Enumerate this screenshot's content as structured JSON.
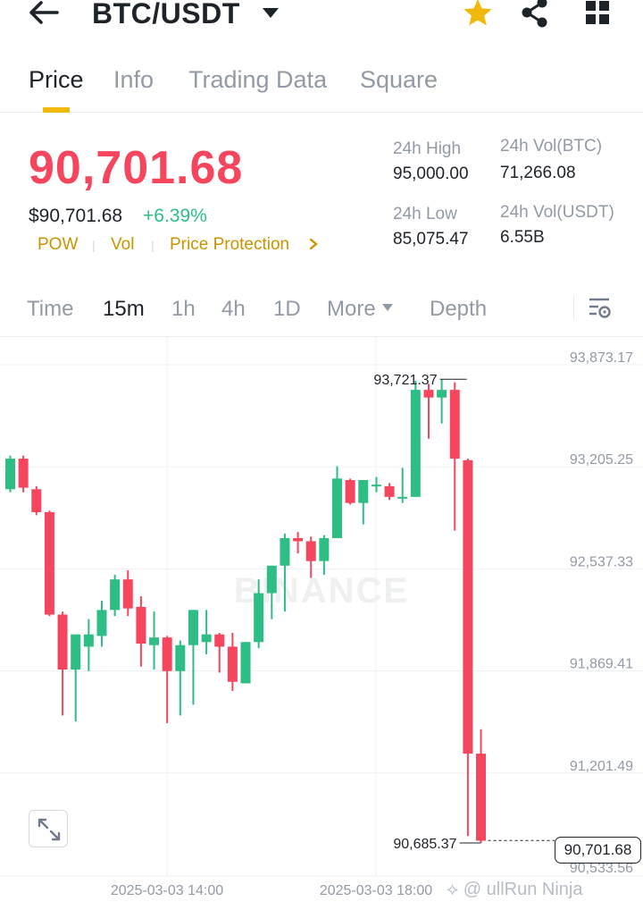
{
  "header": {
    "pair": "BTC/USDT",
    "icons": [
      "back-arrow-icon",
      "caret-down-icon",
      "star-icon",
      "share-icon",
      "grid-icon"
    ],
    "star_color": "#f0b90b"
  },
  "tabs": [
    {
      "label": "Price",
      "active": true
    },
    {
      "label": "Info",
      "active": false
    },
    {
      "label": "Trading Data",
      "active": false
    },
    {
      "label": "Square",
      "active": false
    }
  ],
  "price": {
    "last": "90,701.68",
    "usd": "$90,701.68",
    "change": "+6.39%",
    "tags": [
      "POW",
      "Vol",
      "Price Protection"
    ]
  },
  "stats": {
    "high_label": "24h High",
    "high": "95,000.00",
    "low_label": "24h Low",
    "low": "85,075.47",
    "vol_btc_label": "24h Vol(BTC)",
    "vol_btc": "71,266.08",
    "vol_usdt_label": "24h Vol(USDT)",
    "vol_usdt": "6.55B"
  },
  "intervals": {
    "items": [
      {
        "label": "Time",
        "active": false
      },
      {
        "label": "15m",
        "active": true
      },
      {
        "label": "1h",
        "active": false
      },
      {
        "label": "4h",
        "active": false
      },
      {
        "label": "1D",
        "active": false
      },
      {
        "label": "More",
        "active": false
      },
      {
        "label": "Depth",
        "active": false
      }
    ]
  },
  "colors": {
    "up": "#2ebd85",
    "down": "#f6465d",
    "accent": "#f0b90b"
  },
  "chart_data": {
    "type": "candlestick",
    "watermark": "BINANCE",
    "y_ticks": [
      "93,873.17",
      "93,205.25",
      "92,537.33",
      "91,869.41",
      "91,201.49",
      "90,533.56"
    ],
    "y_range": [
      90533.56,
      93873.17
    ],
    "x_ticks": [
      "2025-03-03 14:00",
      "2025-03-03 18:00"
    ],
    "high_marker": "93,721.37",
    "low_marker": "90,685.37",
    "last_price": "90,701.68",
    "candles": [
      [
        93000,
        93200,
        92980,
        93220
      ],
      [
        93200,
        93010,
        92980,
        93220
      ],
      [
        93000,
        92850,
        92830,
        93020
      ],
      [
        92850,
        92180,
        92170,
        92860
      ],
      [
        92180,
        91820,
        91520,
        92200
      ],
      [
        91820,
        92050,
        91480,
        92050
      ],
      [
        91970,
        92050,
        91810,
        92150
      ],
      [
        92040,
        92210,
        91970,
        92270
      ],
      [
        92210,
        92410,
        92170,
        92440
      ],
      [
        92410,
        92220,
        92170,
        92470
      ],
      [
        92230,
        91990,
        91840,
        92300
      ],
      [
        91980,
        92030,
        91820,
        92200
      ],
      [
        92030,
        91810,
        91470,
        92040
      ],
      [
        91810,
        91980,
        91520,
        92010
      ],
      [
        91980,
        92210,
        91590,
        92210
      ],
      [
        92000,
        92050,
        91920,
        92210
      ],
      [
        92050,
        91970,
        91800,
        92060
      ],
      [
        91970,
        91740,
        91680,
        92060
      ],
      [
        91730,
        92000,
        91730,
        92000
      ],
      [
        92000,
        92320,
        91960,
        92410
      ],
      [
        92320,
        92500,
        92150,
        92500
      ],
      [
        92500,
        92680,
        92200,
        92710
      ],
      [
        92680,
        92660,
        92580,
        92720
      ],
      [
        92660,
        92530,
        92420,
        92690
      ],
      [
        92530,
        92680,
        92440,
        92700
      ],
      [
        92680,
        93070,
        92680,
        93150
      ],
      [
        93060,
        92910,
        92900,
        93070
      ],
      [
        92910,
        93060,
        92770,
        93060
      ],
      [
        93020,
        93030,
        92980,
        93080
      ],
      [
        93020,
        92950,
        92930,
        93040
      ],
      [
        92940,
        92950,
        92910,
        93140
      ],
      [
        92950,
        93650,
        92950,
        93710
      ],
      [
        93650,
        93600,
        93330,
        93690
      ],
      [
        93600,
        93650,
        93430,
        93720
      ],
      [
        93650,
        93200,
        92730,
        93700
      ],
      [
        93190,
        91270,
        90730,
        93200
      ],
      [
        91270,
        90700,
        90685.37,
        91430
      ]
    ]
  }
}
